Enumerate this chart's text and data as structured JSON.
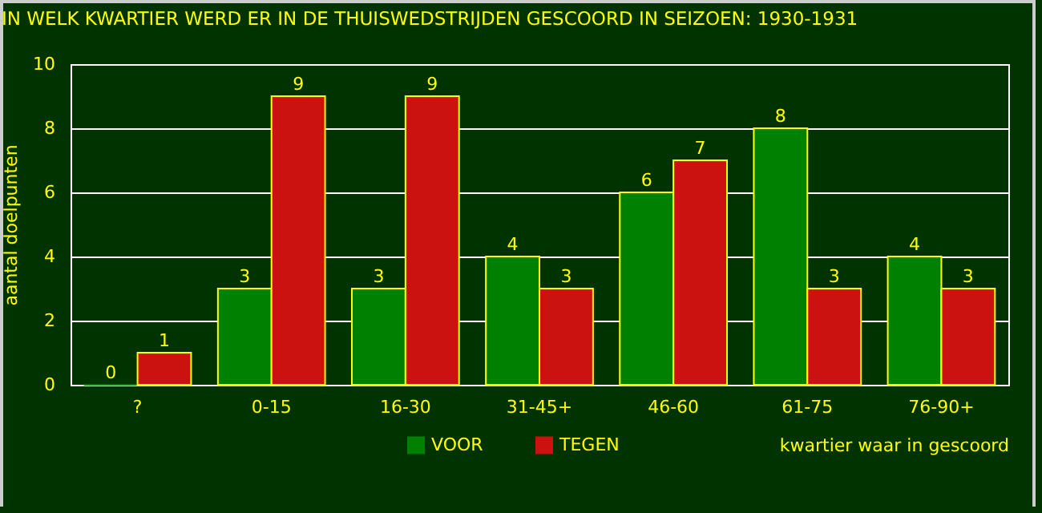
{
  "chart_data": {
    "type": "bar",
    "title": "IN WELK KWARTIER WERD ER IN DE THUISWEDSTRIJDEN GESCOORD IN SEIZOEN: 1930-1931",
    "xlabel": "kwartier waar in gescoord",
    "ylabel": "aantal doelpunten",
    "categories": [
      "?",
      "0-15",
      "16-30",
      "31-45+",
      "46-60",
      "61-75",
      "76-90+"
    ],
    "series": [
      {
        "name": "VOOR",
        "color": "#008000",
        "values": [
          0,
          3,
          3,
          4,
          6,
          8,
          4
        ]
      },
      {
        "name": "TEGEN",
        "color": "#cc1111",
        "values": [
          1,
          9,
          9,
          3,
          7,
          3,
          3
        ]
      }
    ],
    "ylim": [
      0,
      10
    ],
    "yticks": [
      0,
      2,
      4,
      6,
      8,
      10
    ],
    "grid": "y",
    "legend": "bottom",
    "data_labels": true
  }
}
